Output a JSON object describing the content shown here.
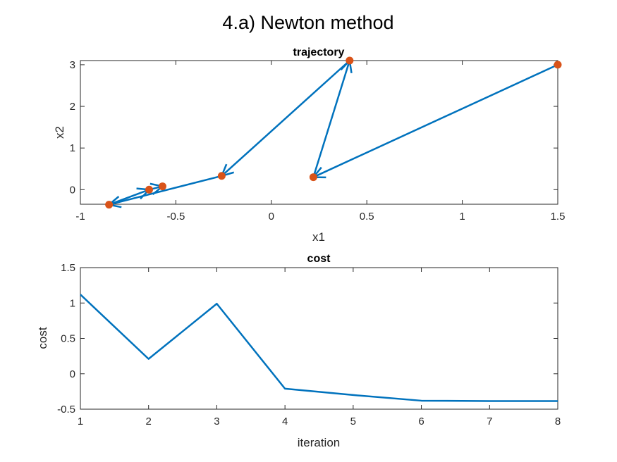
{
  "figure": {
    "title": "4.a) Newton method"
  },
  "chart_data": [
    {
      "type": "line",
      "title": "trajectory",
      "xlabel": "x1",
      "ylabel": "x2",
      "xlim": [
        -1,
        1.5
      ],
      "ylim": [
        -0.35,
        3.1
      ],
      "xticks": [
        -1,
        -0.5,
        0,
        0.5,
        1,
        1.5
      ],
      "xtick_labels": [
        "-1",
        "-0.5",
        "0",
        "0.5",
        "1",
        "1.5"
      ],
      "yticks": [
        0,
        1,
        2,
        3
      ],
      "ytick_labels": [
        "0",
        "1",
        "2",
        "3"
      ],
      "grid": false,
      "series": [
        {
          "style": "arrows",
          "color": "#0072BD",
          "x": [
            1.5,
            0.22,
            0.41,
            -0.26,
            -0.85,
            -0.64,
            -0.57
          ],
          "y": [
            3.0,
            0.3,
            3.1,
            0.33,
            -0.36,
            0.0,
            0.08
          ]
        },
        {
          "style": "markers",
          "color": "#D95319",
          "x": [
            1.5,
            0.22,
            0.41,
            -0.26,
            -0.85,
            -0.64,
            -0.57
          ],
          "y": [
            3.0,
            0.3,
            3.1,
            0.33,
            -0.36,
            0.0,
            0.08
          ]
        }
      ]
    },
    {
      "type": "line",
      "title": "cost",
      "xlabel": "iteration",
      "ylabel": "cost",
      "xlim": [
        1,
        8
      ],
      "ylim": [
        -0.5,
        1.5
      ],
      "xticks": [
        1,
        2,
        3,
        4,
        5,
        6,
        7,
        8
      ],
      "xtick_labels": [
        "1",
        "2",
        "3",
        "4",
        "5",
        "6",
        "7",
        "8"
      ],
      "yticks": [
        -0.5,
        0,
        0.5,
        1,
        1.5
      ],
      "ytick_labels": [
        "-0.5",
        "0",
        "0.5",
        "1",
        "1.5"
      ],
      "grid": false,
      "series": [
        {
          "style": "line",
          "color": "#0072BD",
          "x": [
            1,
            2,
            3,
            4,
            5,
            6,
            7,
            8
          ],
          "y": [
            1.12,
            0.21,
            0.99,
            -0.21,
            -0.3,
            -0.38,
            -0.385,
            -0.385
          ]
        }
      ]
    }
  ]
}
